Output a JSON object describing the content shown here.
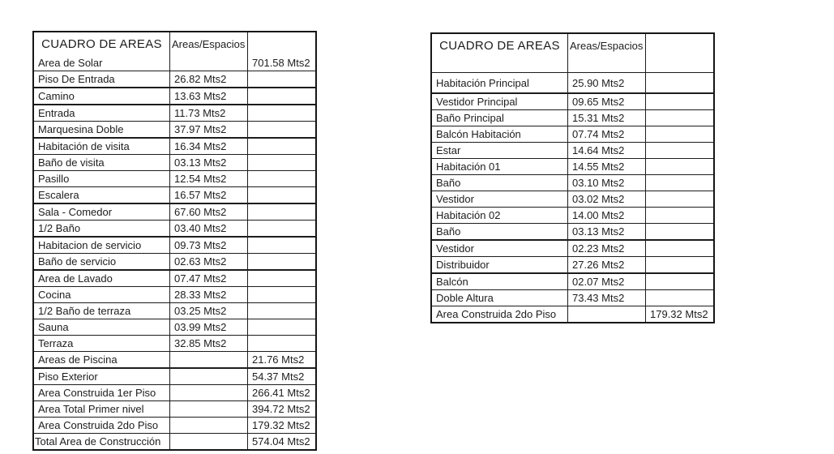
{
  "unit_suffix": "Mts2",
  "tables": [
    {
      "title": "CUADRO DE AREAS",
      "header": {
        "col1": "CUADRO DE AREAS",
        "col2": "Areas/Espacios",
        "col3": ""
      },
      "rows": [
        {
          "name": "Area de Solar",
          "value": "",
          "total": "701.58 Mts2"
        },
        {
          "name": "Piso De Entrada",
          "value": "26.82 Mts2",
          "total": ""
        },
        {
          "name": "Camino",
          "value": "13.63 Mts2",
          "total": ""
        },
        {
          "name": "Entrada",
          "value": "11.73 Mts2",
          "total": ""
        },
        {
          "name": "Marquesina Doble",
          "value": "37.97 Mts2",
          "total": ""
        },
        {
          "name": "Habitación de visita",
          "value": "16.34 Mts2",
          "total": ""
        },
        {
          "name": "Baño de visita",
          "value": "03.13 Mts2",
          "total": ""
        },
        {
          "name": "Pasillo",
          "value": "12.54 Mts2",
          "total": ""
        },
        {
          "name": "Escalera",
          "value": "16.57 Mts2",
          "total": ""
        },
        {
          "name": "Sala - Comedor",
          "value": "67.60 Mts2",
          "total": ""
        },
        {
          "name": "1/2  Baño",
          "value": "03.40 Mts2",
          "total": ""
        },
        {
          "name": "Habitacion de servicio",
          "value": "09.73 Mts2",
          "total": ""
        },
        {
          "name": "Baño de servicio",
          "value": "02.63 Mts2",
          "total": ""
        },
        {
          "name": "Area de Lavado",
          "value": "07.47 Mts2",
          "total": ""
        },
        {
          "name": "Cocina",
          "value": "28.33 Mts2",
          "total": ""
        },
        {
          "name": "1/2 Baño de terraza",
          "value": "03.25 Mts2",
          "total": ""
        },
        {
          "name": "Sauna",
          "value": "03.99 Mts2",
          "total": ""
        },
        {
          "name": "Terraza",
          "value": "32.85 Mts2",
          "total": ""
        },
        {
          "name": "Areas de Piscina",
          "value": "",
          "total": "21.76 Mts2"
        },
        {
          "name": "Piso Exterior",
          "value": "",
          "total": "54.37 Mts2"
        },
        {
          "name": "Area Construida 1er Piso",
          "value": "",
          "total": "266.41 Mts2"
        },
        {
          "name": "Area Total Primer nivel",
          "value": "",
          "total": "394.72 Mts2"
        },
        {
          "name": "Area Construida 2do Piso",
          "value": "",
          "total": "179.32 Mts2"
        },
        {
          "name": "Total Area de Construcción",
          "value": "",
          "total": "574.04 Mts2"
        }
      ]
    },
    {
      "title": "CUADRO DE AREAS",
      "header": {
        "col1": "CUADRO DE AREAS",
        "col2": "Areas/Espacios",
        "col3": ""
      },
      "rows": [
        {
          "name": "",
          "value": "",
          "total": ""
        },
        {
          "name": "Habitación Principal",
          "value": "25.90 Mts2",
          "total": ""
        },
        {
          "name": "Vestidor Principal",
          "value": "09.65 Mts2",
          "total": ""
        },
        {
          "name": "Baño Principal",
          "value": "15.31 Mts2",
          "total": ""
        },
        {
          "name": "Balcón Habitación",
          "value": "07.74 Mts2",
          "total": ""
        },
        {
          "name": "Estar",
          "value": "14.64 Mts2",
          "total": ""
        },
        {
          "name": "Habitación 01",
          "value": "14.55 Mts2",
          "total": ""
        },
        {
          "name": "Baño",
          "value": "03.10 Mts2",
          "total": ""
        },
        {
          "name": "Vestidor",
          "value": "03.02 Mts2",
          "total": ""
        },
        {
          "name": "Habitación 02",
          "value": "14.00 Mts2",
          "total": ""
        },
        {
          "name": "Baño",
          "value": "03.13 Mts2",
          "total": ""
        },
        {
          "name": "Vestidor",
          "value": "02.23 Mts2",
          "total": ""
        },
        {
          "name": "Distribuidor",
          "value": "27.26 Mts2",
          "total": ""
        },
        {
          "name": "Balcón",
          "value": "02.07 Mts2",
          "total": ""
        },
        {
          "name": "Doble Altura",
          "value": "73.43 Mts2",
          "total": ""
        },
        {
          "name": "Area Construida 2do Piso",
          "value": "",
          "total": "179.32 Mts2"
        }
      ]
    }
  ]
}
